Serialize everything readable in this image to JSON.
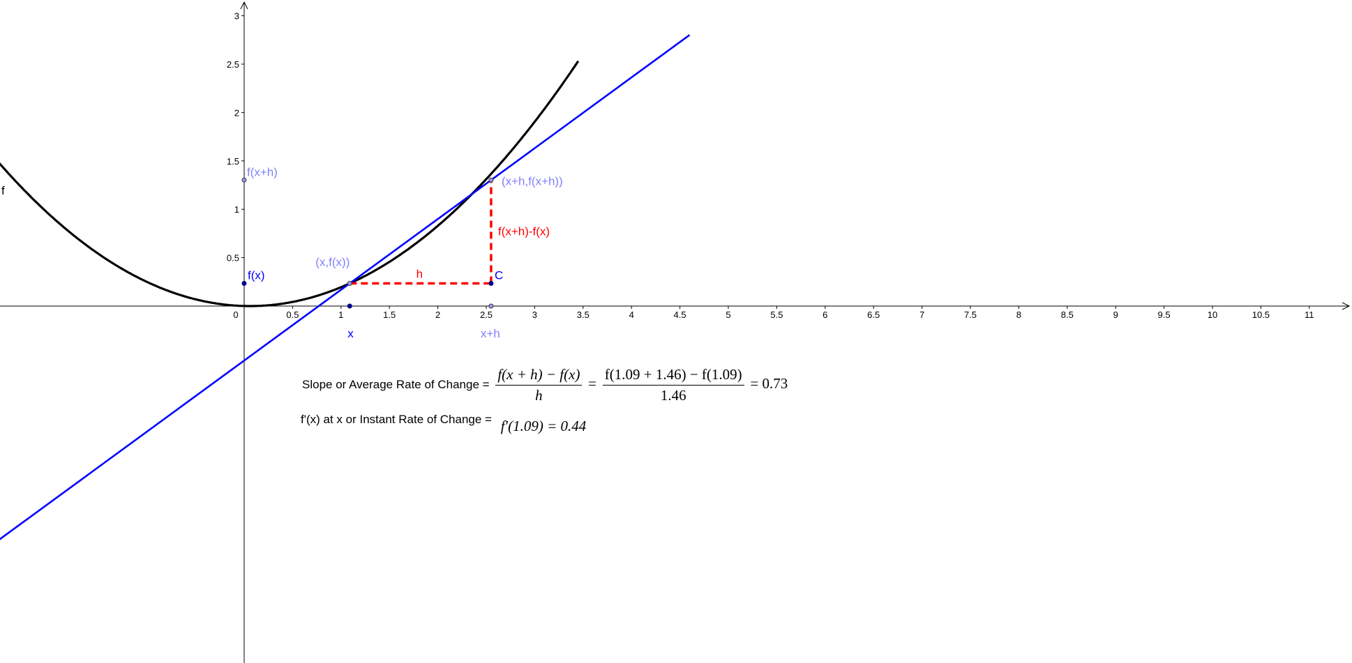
{
  "chart_data": {
    "type": "line",
    "title": "",
    "function_label": "f",
    "x": 1.09,
    "h": 1.46,
    "f_x": 0.234,
    "f_x_plus_h": 1.302,
    "xlim": [
      -2.5,
      11.5
    ],
    "ylim": [
      -2.4,
      3.2
    ],
    "x_ticks": [
      "0",
      "0.5",
      "1",
      "1.5",
      "2",
      "2.5",
      "3",
      "3.5",
      "4",
      "4.5",
      "5",
      "5.5",
      "6",
      "6.5",
      "7",
      "7.5",
      "8",
      "8.5",
      "9",
      "9.5",
      "10",
      "10.5",
      "11"
    ],
    "y_ticks": [
      "0.5",
      "1",
      "1.5",
      "2",
      "2.5",
      "3"
    ],
    "series": [
      {
        "kind": "curve",
        "color": "#000000"
      },
      {
        "kind": "secant",
        "color": "#0000ff"
      },
      {
        "kind": "delta-h",
        "color": "#ff0000"
      },
      {
        "kind": "delta-f",
        "color": "#ff0000"
      }
    ],
    "points": [
      {
        "label": "(x,f(x))",
        "color": "#7f7fff"
      },
      {
        "label": "(x+h,f(x+h))",
        "color": "#7f7fff"
      },
      {
        "label": "C",
        "color": "#0000ff"
      },
      {
        "label": "f(x)",
        "color": "#0000ff"
      },
      {
        "label": "f(x+h)",
        "color": "#7f7fff"
      },
      {
        "label": "x",
        "color": "#0000ff"
      },
      {
        "label": "x+h",
        "color": "#7f7fff"
      }
    ],
    "annotations": {
      "h": "h",
      "rise": "f(x+h)-f(x)"
    }
  },
  "formulas": {
    "slope_label": "Slope or Average Rate of Change =",
    "slope_num": "f(x + h) − f(x)",
    "slope_den": "h",
    "eq": "=",
    "subst_num": "f(1.09 + 1.46) − f(1.09)",
    "subst_den": "1.46",
    "slope_value": "= 0.73",
    "deriv_label": "f'(x) at x or Instant Rate of Change =",
    "deriv_value": "f′(1.09) = 0.44"
  },
  "colors": {
    "curve": "#000000",
    "secant": "#0000ff",
    "delta": "#ff0000",
    "point_dark": "#00008b",
    "point_light": "#7f7fff"
  }
}
